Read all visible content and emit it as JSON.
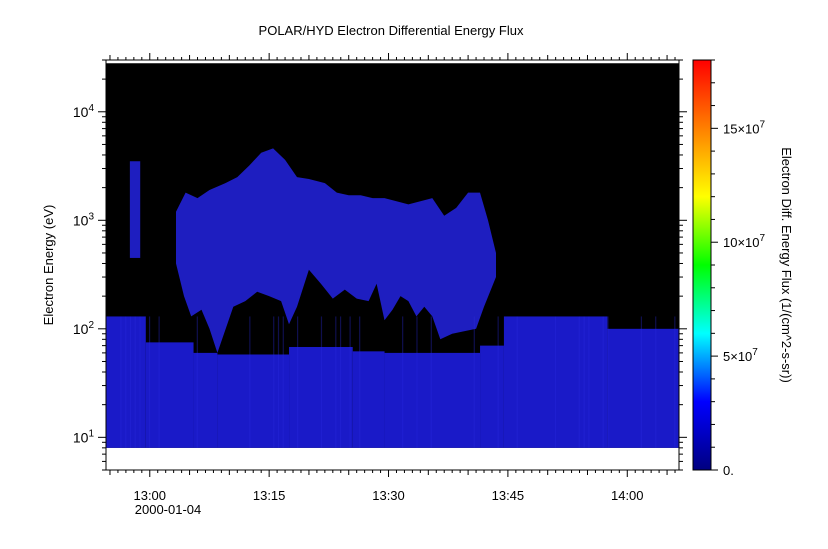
{
  "chart_data": {
    "type": "heatmap",
    "title": "POLAR/HYD  Electron Differential Energy Flux",
    "xlabel": "",
    "ylabel": "Electron Energy (eV)",
    "x_tick_labels": [
      "13:00",
      "13:15",
      "13:30",
      "13:45",
      "14:00"
    ],
    "x_tick_values_min": [
      780,
      795,
      810,
      825,
      840
    ],
    "x_sublabel": "2000-01-04",
    "xlim_min": [
      774.5,
      846.5
    ],
    "ylim": [
      5,
      30000
    ],
    "y_scale": "log",
    "y_tick_values": [
      10,
      100,
      1000,
      10000
    ],
    "y_tick_base": "10",
    "y_tick_exponents": [
      "1",
      "2",
      "3",
      "4"
    ],
    "colorbar": {
      "label": "Electron Diff. Energy Flux (1/(cm^2-s-sr))",
      "range": [
        0,
        180000000
      ],
      "tick_values": [
        0,
        50000000,
        100000000,
        150000000
      ],
      "tick_labels": [
        {
          "value": 0,
          "mantissa": "0.",
          "exponent": ""
        },
        {
          "value": 50000000,
          "mantissa": "5×10",
          "exponent": "7"
        },
        {
          "value": 100000000,
          "mantissa": "10×10",
          "exponent": "7"
        },
        {
          "value": 150000000,
          "mantissa": "15×10",
          "exponent": "7"
        }
      ],
      "colors": [
        "#000080",
        "#0000ff",
        "#00ffff",
        "#00ff00",
        "#ffff00",
        "#ff8000",
        "#ff0000"
      ]
    },
    "background_fill": {
      "color": "#000000",
      "energy_range": [
        8,
        28000
      ],
      "note": "no-data / low flux region"
    },
    "low_energy_band": {
      "color": "#1a1ac8",
      "energy_min": 8,
      "segments": [
        {
          "t0": 774.5,
          "t1": 779.5,
          "top_ev": 130
        },
        {
          "t0": 779.5,
          "t1": 785.5,
          "top_ev": 75
        },
        {
          "t0": 785.5,
          "t1": 788.5,
          "top_ev": 60
        },
        {
          "t0": 788.5,
          "t1": 797.5,
          "top_ev": 58
        },
        {
          "t0": 797.5,
          "t1": 805.5,
          "top_ev": 68
        },
        {
          "t0": 805.5,
          "t1": 809.5,
          "top_ev": 62
        },
        {
          "t0": 809.5,
          "t1": 821.5,
          "top_ev": 60
        },
        {
          "t0": 821.5,
          "t1": 824.5,
          "top_ev": 70
        },
        {
          "t0": 824.5,
          "t1": 837.5,
          "top_ev": 130
        },
        {
          "t0": 837.5,
          "t1": 846.5,
          "top_ev": 100
        }
      ]
    },
    "upper_flux_region": {
      "color": "#1e1ec0",
      "envelope_top_ev": [
        [
          783.3,
          1200
        ],
        [
          784.5,
          1800
        ],
        [
          786,
          1600
        ],
        [
          787.5,
          1900
        ],
        [
          789.5,
          2200
        ],
        [
          791,
          2500
        ],
        [
          792.5,
          3200
        ],
        [
          794,
          4200
        ],
        [
          795.5,
          4600
        ],
        [
          797,
          3600
        ],
        [
          798.5,
          2500
        ],
        [
          800,
          2400
        ],
        [
          802,
          2200
        ],
        [
          803.5,
          1800
        ],
        [
          805,
          1700
        ],
        [
          806.5,
          1700
        ],
        [
          808,
          1600
        ],
        [
          809.5,
          1600
        ],
        [
          811,
          1500
        ],
        [
          812.5,
          1400
        ],
        [
          814,
          1500
        ],
        [
          815.5,
          1600
        ],
        [
          817,
          1100
        ],
        [
          818.5,
          1300
        ],
        [
          820,
          1800
        ],
        [
          821.5,
          1800
        ],
        [
          822.5,
          1000
        ],
        [
          823.5,
          500
        ]
      ],
      "envelope_bottom_ev": [
        [
          783.3,
          400
        ],
        [
          784.3,
          200
        ],
        [
          785.2,
          130
        ],
        [
          786.5,
          150
        ],
        [
          787.5,
          100
        ],
        [
          788.5,
          60
        ],
        [
          790.5,
          160
        ],
        [
          792,
          180
        ],
        [
          793.5,
          220
        ],
        [
          795,
          200
        ],
        [
          796.5,
          180
        ],
        [
          797.5,
          110
        ],
        [
          798.5,
          160
        ],
        [
          800,
          350
        ],
        [
          801.5,
          260
        ],
        [
          803,
          190
        ],
        [
          804.5,
          230
        ],
        [
          806,
          190
        ],
        [
          807.5,
          180
        ],
        [
          808.5,
          260
        ],
        [
          809.5,
          120
        ],
        [
          810.5,
          150
        ],
        [
          811.5,
          200
        ],
        [
          812.5,
          180
        ],
        [
          813.5,
          130
        ],
        [
          814.5,
          160
        ],
        [
          815.5,
          130
        ],
        [
          816.5,
          80
        ],
        [
          818,
          90
        ],
        [
          819.5,
          95
        ],
        [
          821,
          100
        ],
        [
          822,
          160
        ],
        [
          823.5,
          300
        ]
      ],
      "isolated_burst": {
        "t0": 777.5,
        "t1": 778.8,
        "energy_range": [
          450,
          3500
        ]
      }
    }
  }
}
